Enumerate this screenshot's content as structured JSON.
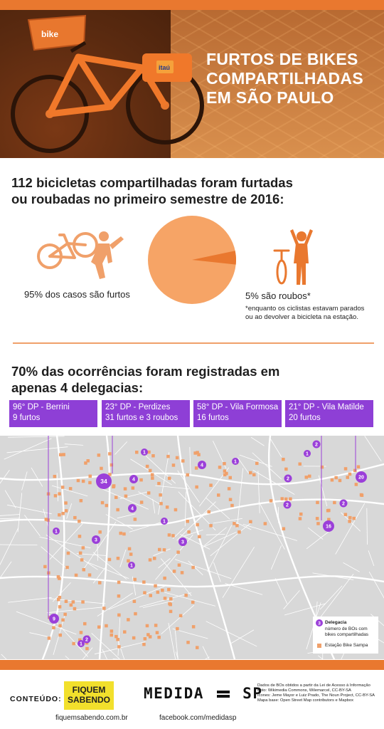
{
  "hero": {
    "title_lines": [
      "FURTOS DE BIKES",
      "COMPARTILHADAS",
      "EM SÃO PAULO"
    ],
    "bike_brand": "bike",
    "sponsor": "itaú"
  },
  "section1": {
    "heading_line1": "112 bicicletas compartilhadas foram furtadas",
    "heading_line2": "ou roubadas no primeiro semestre de 2016:",
    "left_caption": "95% dos casos são furtos",
    "right_caption": "5% são roubos*",
    "right_note": "*enquanto os ciclistas estavam parados ou ao devolver a bicicleta na estação.",
    "pie": {
      "furtos_pct": 95,
      "roubos_pct": 5,
      "color_main": "#f6a466",
      "color_slice": "#e9782f"
    }
  },
  "section2": {
    "heading_line1": "70% das ocorrências foram registradas em",
    "heading_line2": "apenas 4 delegacias:",
    "delegacias": [
      {
        "name": "96° DP - Berrini",
        "detail": "9 furtos"
      },
      {
        "name": "23° DP - Perdizes",
        "detail": "31 furtos e 3 roubos"
      },
      {
        "name": "58° DP - Vila Formosa",
        "detail": "16 furtos"
      },
      {
        "name": "21° DP - Vila Matilde",
        "detail": "20 furtos"
      }
    ]
  },
  "map": {
    "markers": [
      "34",
      "20",
      "16",
      "9",
      "4",
      "4",
      "4",
      "3",
      "3",
      "2",
      "2",
      "2",
      "2",
      "2",
      "1",
      "1",
      "1",
      "1",
      "1",
      "1",
      "1"
    ],
    "legend": {
      "title": "Delegacia",
      "marker_desc": "número de BOs com bikes compartilhadas",
      "station": "Estação Bike Sampa",
      "marker_sample": "3"
    },
    "colors": {
      "delegacia": "#9b3fd9",
      "station": "#f0a06a",
      "land": "#d8d8d8",
      "road": "#ffffff"
    }
  },
  "footer": {
    "conteudo_label": "CONTEÚDO:",
    "fs_logo_line1": "FIQUEM",
    "fs_logo_line2": "SABENDO",
    "fs_url": "fiquemsabendo.com.br",
    "medida": "MEDIDA",
    "medida_sp": "SP",
    "fb_url": "facebook.com/medidasp",
    "credits": [
      "Dados de BOs obtidos a partir da Lei de Acesso à Informação",
      "Foto: Wikimedia Commons, Wilemarcel, CC-BY-SA",
      "Ícones: Jeme Mayor e Luiz Prado, The Noun Project, CC-BY-SA",
      "Mapa base: Open Street Map contributors e Mapbox"
    ]
  }
}
